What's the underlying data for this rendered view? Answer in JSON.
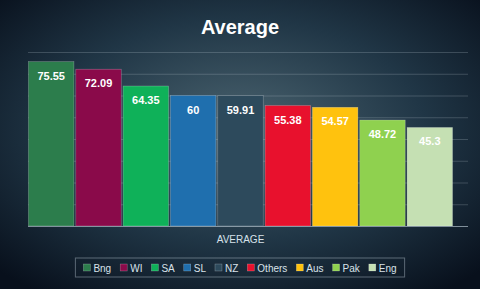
{
  "chart_data": {
    "type": "bar",
    "title": "Average",
    "categories": [
      "AVERAGE"
    ],
    "series": [
      {
        "name": "Bng",
        "color": "#2c7d4c",
        "values": [
          75.55
        ]
      },
      {
        "name": "WI",
        "color": "#8a0a4a",
        "values": [
          72.09
        ]
      },
      {
        "name": "SA",
        "color": "#0fb159",
        "values": [
          64.35
        ]
      },
      {
        "name": "SL",
        "color": "#1f6fae",
        "values": [
          60
        ]
      },
      {
        "name": "NZ",
        "color": "#2d4a5c",
        "values": [
          59.91
        ]
      },
      {
        "name": "Others",
        "color": "#e8112d",
        "values": [
          55.38
        ]
      },
      {
        "name": "Aus",
        "color": "#ffc20e",
        "values": [
          54.57
        ]
      },
      {
        "name": "Pak",
        "color": "#8fd14f",
        "values": [
          48.72
        ]
      },
      {
        "name": "Eng",
        "color": "#c5e0b3",
        "values": [
          45.3
        ]
      }
    ],
    "ylim": [
      0,
      80
    ],
    "yticks": [
      0,
      10,
      20,
      30,
      40,
      50,
      60,
      70,
      80
    ],
    "grid": true,
    "data_labels": true,
    "tick_labels": "x",
    "legend": "bottom"
  }
}
